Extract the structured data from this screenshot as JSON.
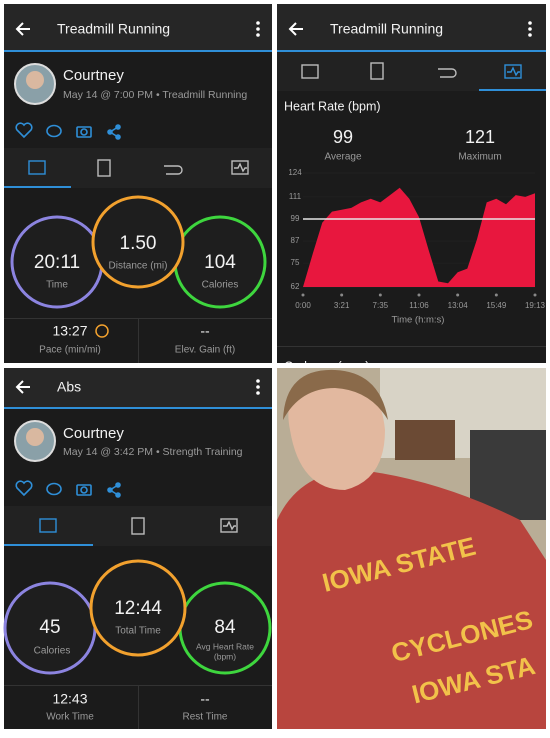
{
  "screens": [
    {
      "title": "Treadmill Running",
      "user": "Courtney",
      "subtitle": "May 14 @ 7:00 PM • Treadmill Running",
      "stats": [
        {
          "value": "20:11",
          "label": "Time"
        },
        {
          "value": "1.50",
          "label": "Distance (mi)"
        },
        {
          "value": "104",
          "label": "Calories"
        }
      ],
      "details": [
        {
          "value": "13:27",
          "label": "Pace (min/mi)"
        },
        {
          "value": "--",
          "label": "Elev. Gain (ft)"
        }
      ]
    },
    {
      "title": "Treadmill Running",
      "chart": {
        "type": "area",
        "title": "Heart Rate (bpm)",
        "average": 99,
        "average_label": "Average",
        "maximum": 121,
        "maximum_label": "Maximum",
        "values": [
          62,
          80,
          97,
          103,
          104,
          105,
          108,
          110,
          108,
          112,
          116,
          110,
          100,
          82,
          65,
          64,
          70,
          72,
          88,
          108,
          110,
          107,
          112,
          111,
          113
        ],
        "color": "#e8173e",
        "ylim": [
          62,
          124
        ],
        "yticks": [
          124,
          111,
          99,
          87,
          75,
          62
        ],
        "xtick_labels": [
          "0:00",
          "3:21",
          "7:35",
          "11:06",
          "13:04",
          "15:49",
          "19:13"
        ],
        "xlabel": "Time (h:m:s)"
      },
      "next_section": "Cadence (spm)"
    },
    {
      "title": "Abs",
      "user": "Courtney",
      "subtitle": "May 14 @ 3:42 PM • Strength Training",
      "stats": [
        {
          "value": "45",
          "label": "Calories"
        },
        {
          "value": "12:44",
          "label": "Total Time"
        },
        {
          "value": "84",
          "label": "Avg Heart Rate",
          "label_unit": "(bpm)"
        }
      ],
      "details": [
        {
          "value": "12:43",
          "label": "Work Time"
        },
        {
          "value": "--",
          "label": "Rest Time"
        }
      ]
    }
  ],
  "photo": {
    "shirt_text": [
      "IOWA STATE",
      "CYCLONES",
      "IOWA STA"
    ]
  }
}
